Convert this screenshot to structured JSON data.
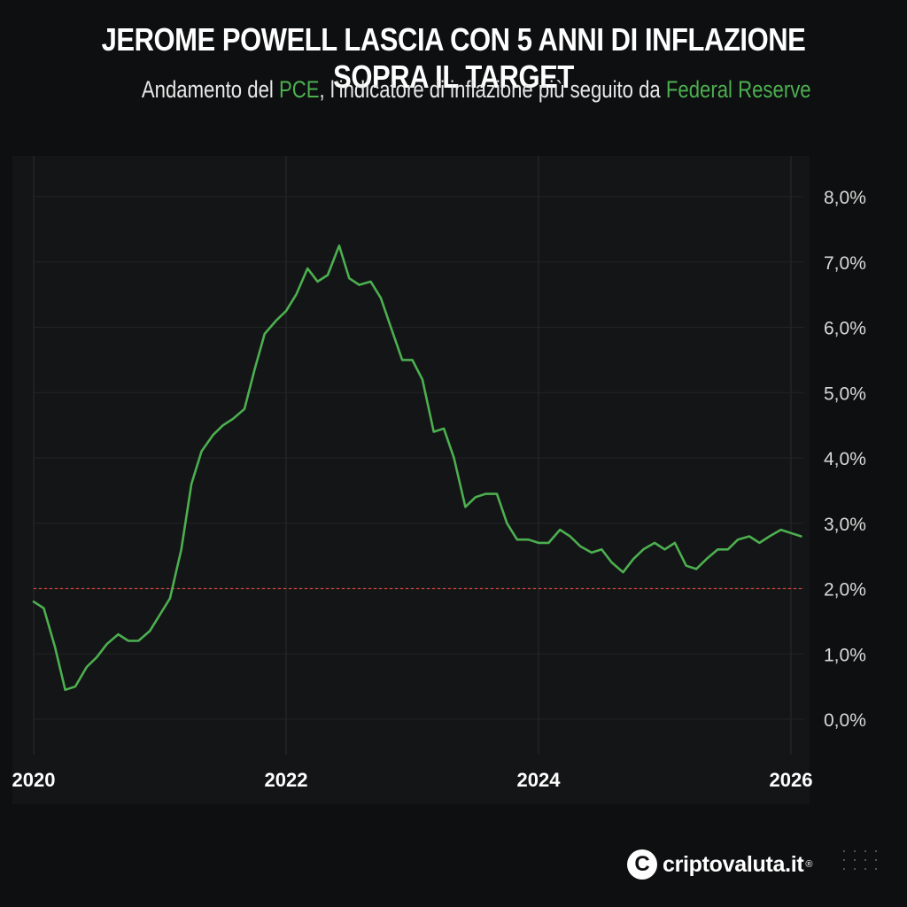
{
  "header": {
    "title": "JEROME POWELL LASCIA CON 5 ANNI DI INFLAZIONE SOPRA IL TARGET",
    "subtitle_part1": "Andamento del ",
    "subtitle_highlight1": "PCE",
    "subtitle_part2": ", l’indicatore di inflazione più seguito da ",
    "subtitle_highlight2": "Federal Reserve"
  },
  "colors": {
    "line": "#4caf50",
    "target_line": "#d9413a",
    "highlight": "#4caf50",
    "background": "#0e0f10"
  },
  "chart_data": {
    "type": "line",
    "title": "",
    "xlabel": "",
    "ylabel": "",
    "x_range": [
      2020.0,
      2026.2
    ],
    "ylim": [
      -0.5,
      8.5
    ],
    "y_axis_side": "right",
    "grid": true,
    "x_ticks": [
      "2020",
      "2022",
      "2024",
      "2026"
    ],
    "y_ticks": [
      "0,0%",
      "1,0%",
      "2,0%",
      "3,0%",
      "4,0%",
      "5,0%",
      "6,0%",
      "7,0%",
      "8,0%"
    ],
    "target_value": 2.0,
    "series": [
      {
        "name": "",
        "x": [
          2020.0,
          2020.08,
          2020.17,
          2020.25,
          2020.33,
          2020.42,
          2020.5,
          2020.58,
          2020.67,
          2020.75,
          2020.83,
          2020.92,
          2021.0,
          2021.08,
          2021.17,
          2021.25,
          2021.33,
          2021.42,
          2021.5,
          2021.58,
          2021.67,
          2021.75,
          2021.83,
          2021.92,
          2022.0,
          2022.08,
          2022.17,
          2022.25,
          2022.33,
          2022.42,
          2022.5,
          2022.58,
          2022.67,
          2022.75,
          2022.83,
          2022.92,
          2023.0,
          2023.08,
          2023.17,
          2023.25,
          2023.33,
          2023.42,
          2023.5,
          2023.58,
          2023.67,
          2023.75,
          2023.83,
          2023.92,
          2024.0,
          2024.08,
          2024.17,
          2024.25,
          2024.33,
          2024.42,
          2024.5,
          2024.58,
          2024.67,
          2024.75,
          2024.83,
          2024.92,
          2025.0,
          2025.08,
          2025.17,
          2025.25,
          2025.33,
          2025.42,
          2025.5,
          2025.58,
          2025.67,
          2025.75,
          2025.83,
          2025.92,
          2026.0,
          2026.08
        ],
        "values": [
          1.8,
          1.7,
          1.1,
          0.45,
          0.5,
          0.8,
          0.95,
          1.15,
          1.3,
          1.2,
          1.2,
          1.35,
          1.6,
          1.85,
          2.6,
          3.6,
          4.1,
          4.35,
          4.5,
          4.6,
          4.75,
          5.35,
          5.9,
          6.1,
          6.25,
          6.5,
          6.9,
          6.7,
          6.8,
          7.25,
          6.75,
          6.65,
          6.7,
          6.45,
          6.0,
          5.5,
          5.5,
          5.2,
          4.4,
          4.45,
          4.0,
          3.25,
          3.4,
          3.45,
          3.45,
          3.0,
          2.75,
          2.75,
          2.7,
          2.7,
          2.9,
          2.8,
          2.65,
          2.55,
          2.6,
          2.4,
          2.25,
          2.45,
          2.6,
          2.7,
          2.6,
          2.7,
          2.35,
          2.3,
          2.45,
          2.6,
          2.6,
          2.75,
          2.8,
          2.7,
          2.8,
          2.9,
          2.85,
          2.8
        ]
      }
    ]
  },
  "brand": {
    "logo_letter": "C",
    "name": "criptovaluta.it",
    "registered": "®"
  }
}
